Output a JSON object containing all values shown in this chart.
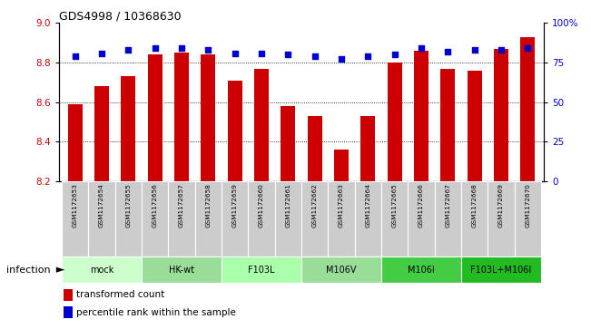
{
  "title": "GDS4998 / 10368630",
  "samples": [
    "GSM1172653",
    "GSM1172654",
    "GSM1172655",
    "GSM1172656",
    "GSM1172657",
    "GSM1172658",
    "GSM1172659",
    "GSM1172660",
    "GSM1172661",
    "GSM1172662",
    "GSM1172663",
    "GSM1172664",
    "GSM1172665",
    "GSM1172666",
    "GSM1172667",
    "GSM1172668",
    "GSM1172669",
    "GSM1172670"
  ],
  "transformed_count": [
    8.59,
    8.68,
    8.73,
    8.84,
    8.85,
    8.84,
    8.71,
    8.77,
    8.58,
    8.53,
    8.36,
    8.53,
    8.8,
    8.86,
    8.77,
    8.76,
    8.87,
    8.93
  ],
  "percentile_rank": [
    79,
    81,
    83,
    84,
    84,
    83,
    81,
    81,
    80,
    79,
    77,
    79,
    80,
    84,
    82,
    83,
    83,
    84
  ],
  "groups": [
    {
      "label": "mock",
      "start": 0,
      "end": 2,
      "color": "#ccffcc"
    },
    {
      "label": "HK-wt",
      "start": 3,
      "end": 5,
      "color": "#99dd99"
    },
    {
      "label": "F103L",
      "start": 6,
      "end": 8,
      "color": "#aaffaa"
    },
    {
      "label": "M106V",
      "start": 9,
      "end": 11,
      "color": "#99dd99"
    },
    {
      "label": "M106I",
      "start": 12,
      "end": 14,
      "color": "#44cc44"
    },
    {
      "label": "F103L+M106I",
      "start": 15,
      "end": 17,
      "color": "#22bb22"
    }
  ],
  "ylim_left": [
    8.2,
    9.0
  ],
  "ylim_right": [
    0,
    100
  ],
  "yticks_left": [
    8.2,
    8.4,
    8.6,
    8.8,
    9.0
  ],
  "yticks_right": [
    0,
    25,
    50,
    75,
    100
  ],
  "bar_color": "#cc0000",
  "dot_color": "#0000cc",
  "bar_bottom": 8.2,
  "infection_label": "infection",
  "legend_bar": "transformed count",
  "legend_dot": "percentile rank within the sample",
  "grid_lines": [
    8.4,
    8.6,
    8.8
  ],
  "sample_box_color": "#cccccc",
  "sample_box_edge": "#ffffff"
}
